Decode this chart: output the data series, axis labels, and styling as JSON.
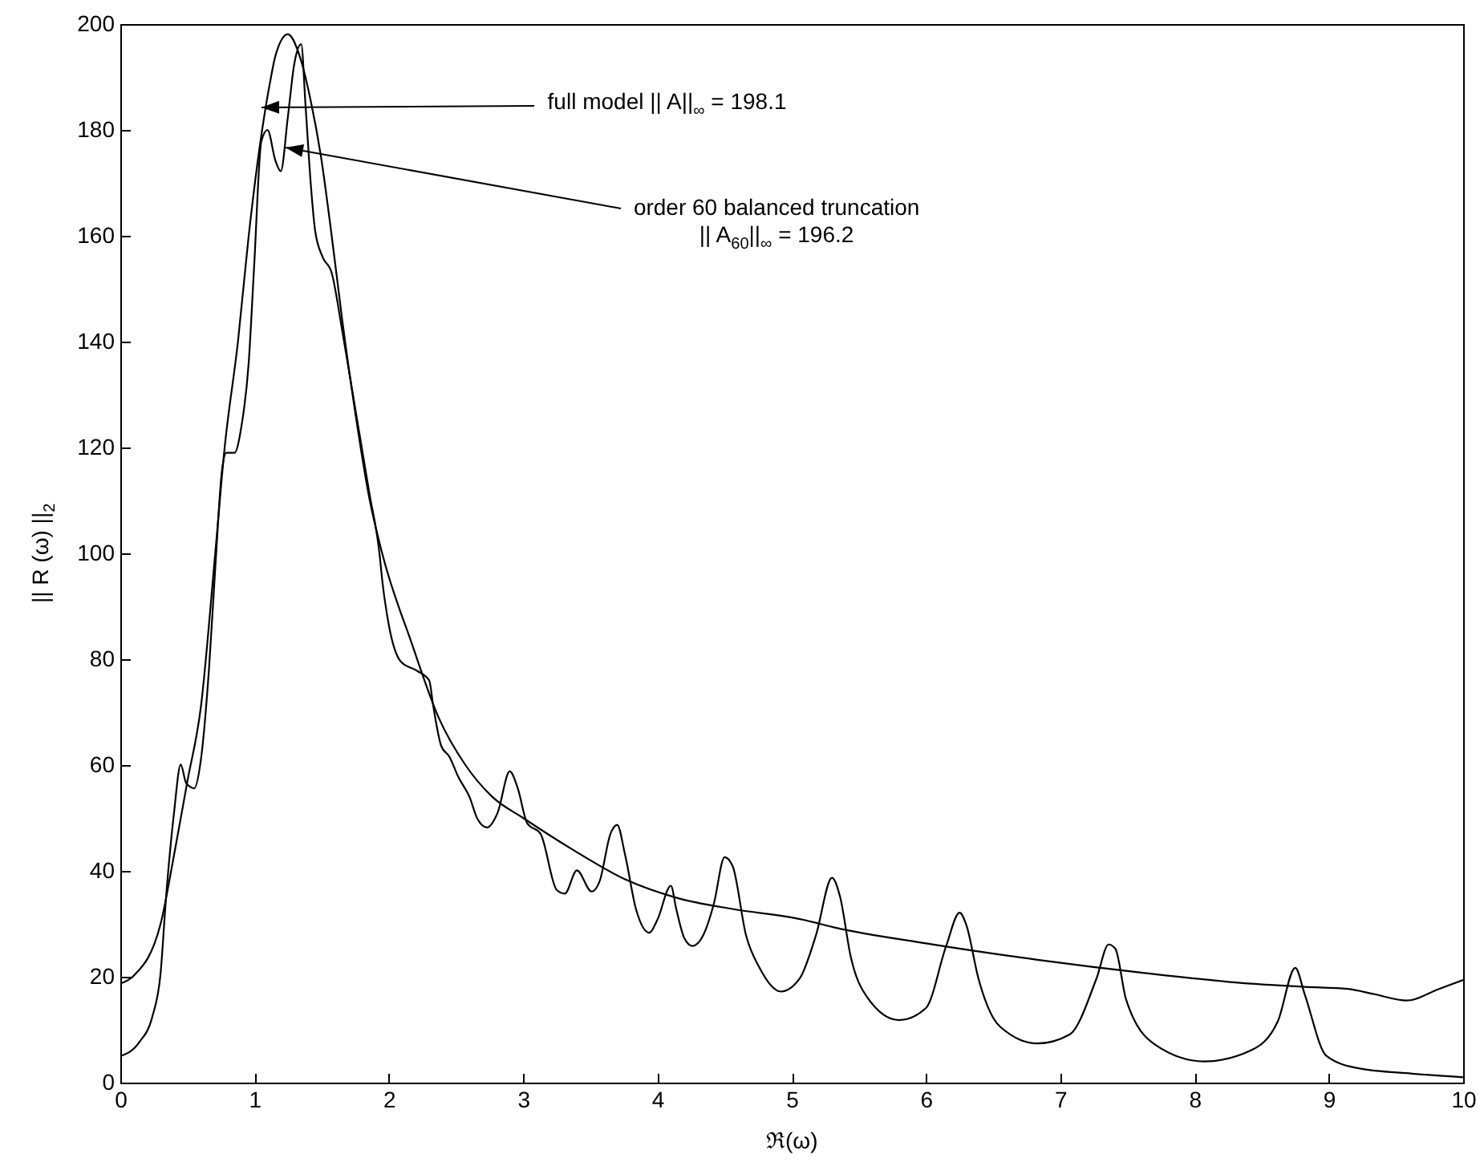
{
  "chart_data": {
    "type": "line",
    "xlabel": "ℜ(ω)",
    "ylabel": "|| R (ω) ||$_{2}$",
    "xlim": [
      0,
      10
    ],
    "ylim": [
      0,
      200
    ],
    "xticks": [
      0,
      1,
      2,
      3,
      4,
      5,
      6,
      7,
      8,
      9,
      10
    ],
    "yticks": [
      0,
      20,
      40,
      60,
      80,
      100,
      120,
      140,
      160,
      180,
      200
    ],
    "grid": false,
    "marker": "none",
    "line_style": "solid",
    "annotations": [
      {
        "text": "full model ||  A||$_{∞}$ = 198.1",
        "x": 1.055,
        "y": 184.3
      },
      {
        "text": "order 60 balanced truncation\n|| A$_{60}$||$_{∞}$ = 196.2",
        "x": 1.23,
        "y": 176.8
      }
    ],
    "series": [
      {
        "color": "#000000",
        "x": [
          0,
          0.1,
          0.3,
          0.4,
          0.5,
          0.6,
          0.705,
          0.777,
          0.876,
          0.956,
          1.056,
          1.115,
          1.155,
          1.247,
          1.335,
          1.414,
          1.494,
          1.574,
          1.653,
          1.753,
          1.853,
          1.95,
          2.17,
          2.37,
          2.57,
          2.77,
          3.0,
          3.37,
          3.76,
          4.16,
          4.56,
          5.08,
          5.32,
          6.0,
          6.83,
          7.63,
          8.42,
          8.82,
          9.14,
          9.34,
          9.58,
          9.82,
          10.0
        ],
        "values": [
          18.7,
          20.2,
          30,
          43,
          57,
          71,
          99.5,
          120,
          140,
          160,
          180,
          189,
          194,
          198.1,
          194,
          186,
          175,
          160,
          144,
          126,
          110.6,
          100,
          83,
          69,
          60,
          54,
          50,
          44,
          38.4,
          34.8,
          32.8,
          30.8,
          29.3,
          26.3,
          23.2,
          20.7,
          18.7,
          18.1,
          17.7,
          16.7,
          15.5,
          17.7,
          19.4
        ]
      },
      {
        "color": "#000000",
        "x": [
          0,
          0.14,
          0.24,
          0.3,
          0.34,
          0.4,
          0.45,
          0.49,
          0.55,
          0.6,
          0.66,
          0.71,
          0.757,
          0.79,
          0.85,
          0.9,
          0.956,
          0.996,
          1.05,
          1.096,
          1.155,
          1.195,
          1.247,
          1.295,
          1.347,
          1.38,
          1.42,
          1.45,
          1.506,
          1.574,
          1.653,
          1.753,
          1.853,
          1.932,
          1.95,
          2.0,
          2.09,
          2.21,
          2.3,
          2.33,
          2.39,
          2.45,
          2.52,
          2.6,
          2.66,
          2.73,
          2.81,
          2.9,
          2.96,
          3.03,
          3.13,
          3.25,
          3.31,
          3.4,
          3.51,
          3.57,
          3.65,
          3.7,
          3.76,
          3.84,
          3.94,
          4.0,
          4.1,
          4.14,
          4.2,
          4.26,
          4.34,
          4.42,
          4.5,
          4.56,
          4.66,
          4.76,
          4.92,
          5.06,
          5.18,
          5.3,
          5.36,
          5.44,
          5.56,
          5.8,
          6.0,
          6.15,
          6.25,
          6.3,
          6.39,
          6.55,
          6.83,
          7.07,
          7.27,
          7.36,
          7.41,
          7.49,
          7.71,
          8.07,
          8.42,
          8.62,
          8.75,
          8.82,
          8.98,
          9.22,
          9.62,
          10.0
        ],
        "values": [
          5.0,
          7.6,
          12.6,
          20.7,
          34.8,
          51,
          60.1,
          56.6,
          55.6,
          61,
          78,
          98.5,
          115.7,
          119,
          119,
          123.7,
          136,
          154,
          177.8,
          180,
          174.2,
          172.2,
          182.3,
          192.4,
          196.2,
          184.3,
          169.2,
          161.1,
          156,
          153,
          142,
          126.8,
          111.6,
          99.5,
          95,
          86.4,
          79.5,
          77.8,
          76,
          71.2,
          63.6,
          61.6,
          57.6,
          54,
          49.8,
          48.2,
          51,
          58.8,
          55.6,
          49,
          47,
          36.4,
          35.7,
          40.1,
          36.1,
          38.1,
          47,
          48.7,
          42.9,
          32.8,
          28.3,
          30.8,
          37.2,
          32.8,
          27.3,
          25.8,
          27.8,
          33.8,
          42.6,
          40.9,
          27.8,
          21.7,
          17.2,
          19.7,
          27.8,
          38.7,
          35.1,
          23.7,
          16.2,
          11.8,
          14.1,
          25.8,
          32.1,
          29.8,
          19.7,
          10.6,
          7.4,
          9.1,
          19.7,
          26.1,
          25.3,
          15.7,
          7.1,
          4.0,
          6.1,
          11.6,
          21.7,
          16.7,
          5.1,
          2.7,
          1.7,
          1.0
        ]
      }
    ]
  }
}
